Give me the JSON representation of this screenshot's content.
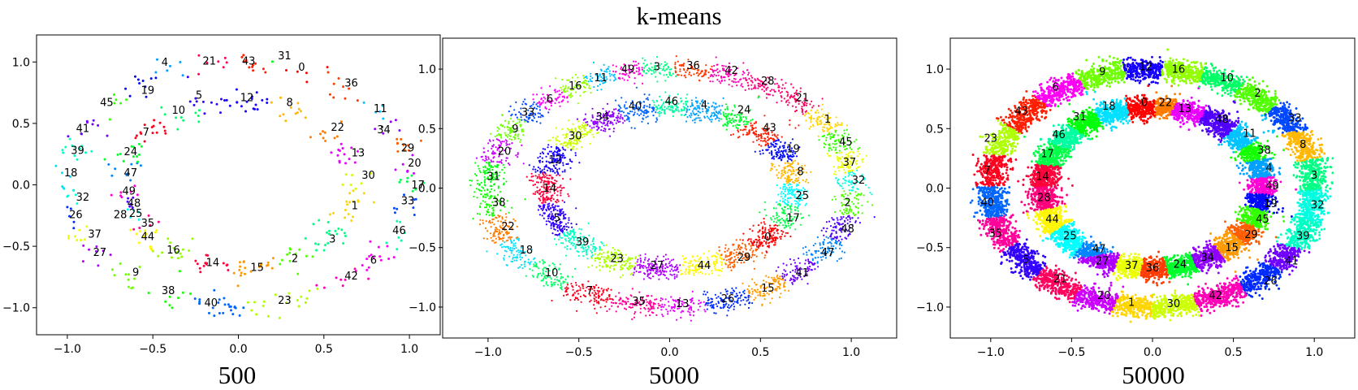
{
  "figure": {
    "title": "k-means"
  },
  "chart_data": [
    {
      "type": "scatter",
      "title": "",
      "xlabel": "500",
      "ylabel": "",
      "n_points": 500,
      "n_clusters": 50,
      "xlim": [
        -1.18,
        1.18
      ],
      "ylim": [
        -1.22,
        1.22
      ],
      "xticks": [
        -1.0,
        -0.5,
        0.0,
        0.5,
        1.0
      ],
      "yticks": [
        -1.0,
        -0.5,
        0.0,
        0.5,
        1.0
      ],
      "xtick_labels": [
        "−1.0",
        "−0.5",
        "0.0",
        "0.5",
        "1.0"
      ],
      "ytick_labels": [
        "−1.0",
        "−0.5",
        "0.0",
        "0.5",
        "1.0"
      ],
      "data": "two concentric noisy rings (outer radius ≈1.0, inner radius ≈0.68), 500 points coloured by k-means cluster",
      "cluster_centers": [
        {
          "label": "0",
          "x": 0.37,
          "y": 0.96
        },
        {
          "label": "1",
          "x": 0.68,
          "y": -0.17
        },
        {
          "label": "2",
          "x": 0.33,
          "y": -0.6
        },
        {
          "label": "3",
          "x": 0.55,
          "y": -0.44
        },
        {
          "label": "4",
          "x": -0.43,
          "y": 1.0
        },
        {
          "label": "5",
          "x": -0.23,
          "y": 0.73
        },
        {
          "label": "6",
          "x": 0.79,
          "y": -0.61
        },
        {
          "label": "7",
          "x": -0.54,
          "y": 0.43
        },
        {
          "label": "8",
          "x": 0.3,
          "y": 0.67
        },
        {
          "label": "9",
          "x": -0.6,
          "y": -0.71
        },
        {
          "label": "10",
          "x": -0.35,
          "y": 0.61
        },
        {
          "label": "11",
          "x": 0.83,
          "y": 0.62
        },
        {
          "label": "12",
          "x": 0.05,
          "y": 0.71
        },
        {
          "label": "13",
          "x": 0.7,
          "y": 0.26
        },
        {
          "label": "14",
          "x": -0.15,
          "y": -0.63
        },
        {
          "label": "15",
          "x": 0.11,
          "y": -0.67
        },
        {
          "label": "16",
          "x": -0.38,
          "y": -0.53
        },
        {
          "label": "17",
          "x": 1.05,
          "y": 0.0
        },
        {
          "label": "18",
          "x": -0.98,
          "y": 0.1
        },
        {
          "label": "19",
          "x": -0.53,
          "y": 0.77
        },
        {
          "label": "20",
          "x": 1.03,
          "y": 0.18
        },
        {
          "label": "21",
          "x": -0.17,
          "y": 1.01
        },
        {
          "label": "22",
          "x": 0.58,
          "y": 0.47
        },
        {
          "label": "23",
          "x": 0.27,
          "y": -0.94
        },
        {
          "label": "24",
          "x": -0.63,
          "y": 0.27
        },
        {
          "label": "25",
          "x": -0.6,
          "y": -0.23
        },
        {
          "label": "26",
          "x": -0.95,
          "y": -0.24
        },
        {
          "label": "27",
          "x": -0.81,
          "y": -0.55
        },
        {
          "label": "28",
          "x": -0.69,
          "y": -0.24
        },
        {
          "label": "29",
          "x": 0.99,
          "y": 0.3
        },
        {
          "label": "30",
          "x": 0.76,
          "y": 0.08
        },
        {
          "label": "31",
          "x": 0.27,
          "y": 1.05
        },
        {
          "label": "32",
          "x": -0.91,
          "y": -0.1
        },
        {
          "label": "33",
          "x": 0.99,
          "y": -0.13
        },
        {
          "label": "34",
          "x": 0.85,
          "y": 0.45
        },
        {
          "label": "35",
          "x": -0.53,
          "y": -0.31
        },
        {
          "label": "36",
          "x": 0.66,
          "y": 0.83
        },
        {
          "label": "37",
          "x": -0.84,
          "y": -0.4
        },
        {
          "label": "38",
          "x": -0.41,
          "y": -0.86
        },
        {
          "label": "39",
          "x": -0.94,
          "y": 0.28
        },
        {
          "label": "40",
          "x": -0.16,
          "y": -0.96
        },
        {
          "label": "41",
          "x": -0.91,
          "y": 0.46
        },
        {
          "label": "42",
          "x": 0.66,
          "y": -0.74
        },
        {
          "label": "43",
          "x": 0.06,
          "y": 1.01
        },
        {
          "label": "44",
          "x": -0.53,
          "y": -0.42
        },
        {
          "label": "45",
          "x": -0.77,
          "y": 0.67
        },
        {
          "label": "46",
          "x": 0.94,
          "y": -0.37
        },
        {
          "label": "47",
          "x": -0.63,
          "y": 0.1
        },
        {
          "label": "48",
          "x": -0.61,
          "y": -0.15
        },
        {
          "label": "49",
          "x": -0.64,
          "y": -0.05
        }
      ]
    },
    {
      "type": "scatter",
      "title": "",
      "xlabel": "5000",
      "ylabel": "",
      "n_points": 5000,
      "n_clusters": 50,
      "xlim": [
        -1.25,
        1.25
      ],
      "ylim": [
        -1.26,
        1.26
      ],
      "xticks": [
        -1.0,
        -0.5,
        0.0,
        0.5,
        1.0
      ],
      "yticks": [
        -1.0,
        -0.5,
        0.0,
        0.5,
        1.0
      ],
      "xtick_labels": [
        "−1.0",
        "−0.5",
        "0.0",
        "0.5",
        "1.0"
      ],
      "ytick_labels": [
        "−1.0",
        "−0.5",
        "0.0",
        "0.5",
        "1.0"
      ],
      "data": "two concentric noisy rings (outer radius ≈1.0, inner radius ≈0.68), 5000 points coloured by k-means cluster",
      "cluster_centers": [
        {
          "label": "0",
          "x": 0.54,
          "y": -0.41
        },
        {
          "label": "1",
          "x": 0.87,
          "y": 0.58
        },
        {
          "label": "2",
          "x": 0.98,
          "y": -0.12
        },
        {
          "label": "3",
          "x": -0.07,
          "y": 1.02
        },
        {
          "label": "4",
          "x": 0.19,
          "y": 0.7
        },
        {
          "label": "5",
          "x": -0.62,
          "y": -0.25
        },
        {
          "label": "6",
          "x": -0.66,
          "y": 0.75
        },
        {
          "label": "7",
          "x": -0.44,
          "y": -0.86
        },
        {
          "label": "8",
          "x": 0.72,
          "y": 0.14
        },
        {
          "label": "9",
          "x": -0.85,
          "y": 0.5
        },
        {
          "label": "10",
          "x": -0.65,
          "y": -0.71
        },
        {
          "label": "11",
          "x": -0.38,
          "y": 0.93
        },
        {
          "label": "12",
          "x": -0.63,
          "y": 0.24
        },
        {
          "label": "13",
          "x": 0.07,
          "y": -0.97
        },
        {
          "label": "14",
          "x": -0.66,
          "y": 0.0
        },
        {
          "label": "15",
          "x": 0.54,
          "y": -0.84
        },
        {
          "label": "16",
          "x": -0.52,
          "y": 0.86
        },
        {
          "label": "17",
          "x": 0.68,
          "y": -0.25
        },
        {
          "label": "18",
          "x": -0.79,
          "y": -0.52
        },
        {
          "label": "19",
          "x": 0.68,
          "y": 0.33
        },
        {
          "label": "20",
          "x": -0.91,
          "y": 0.31
        },
        {
          "label": "21",
          "x": 0.73,
          "y": 0.76
        },
        {
          "label": "22",
          "x": -0.89,
          "y": -0.32
        },
        {
          "label": "23",
          "x": -0.29,
          "y": -0.59
        },
        {
          "label": "24",
          "x": 0.41,
          "y": 0.66
        },
        {
          "label": "25",
          "x": 0.73,
          "y": -0.06
        },
        {
          "label": "26",
          "x": 0.32,
          "y": -0.93
        },
        {
          "label": "27",
          "x": -0.07,
          "y": -0.65
        },
        {
          "label": "28",
          "x": 0.54,
          "y": 0.9
        },
        {
          "label": "29",
          "x": 0.41,
          "y": -0.58
        },
        {
          "label": "30",
          "x": -0.52,
          "y": 0.44
        },
        {
          "label": "31",
          "x": -0.97,
          "y": 0.1
        },
        {
          "label": "32",
          "x": 1.04,
          "y": 0.07
        },
        {
          "label": "33",
          "x": -0.78,
          "y": 0.64
        },
        {
          "label": "34",
          "x": -0.37,
          "y": 0.6
        },
        {
          "label": "35",
          "x": -0.17,
          "y": -0.95
        },
        {
          "label": "36",
          "x": 0.13,
          "y": 1.03
        },
        {
          "label": "37",
          "x": 0.99,
          "y": 0.22
        },
        {
          "label": "38",
          "x": -0.94,
          "y": -0.12
        },
        {
          "label": "39",
          "x": -0.48,
          "y": -0.45
        },
        {
          "label": "40",
          "x": -0.19,
          "y": 0.69
        },
        {
          "label": "41",
          "x": 0.73,
          "y": -0.71
        },
        {
          "label": "42",
          "x": 0.34,
          "y": 0.99
        },
        {
          "label": "43",
          "x": 0.55,
          "y": 0.51
        },
        {
          "label": "44",
          "x": 0.19,
          "y": -0.65
        },
        {
          "label": "45",
          "x": 0.97,
          "y": 0.39
        },
        {
          "label": "46",
          "x": 0.01,
          "y": 0.73
        },
        {
          "label": "47",
          "x": 0.87,
          "y": -0.54
        },
        {
          "label": "48",
          "x": 0.98,
          "y": -0.34
        },
        {
          "label": "49",
          "x": -0.23,
          "y": 1.0
        }
      ]
    },
    {
      "type": "scatter",
      "title": "",
      "xlabel": "50000",
      "ylabel": "",
      "n_points": 50000,
      "n_clusters": 50,
      "xlim": [
        -1.25,
        1.25
      ],
      "ylim": [
        -1.26,
        1.26
      ],
      "xticks": [
        -1.0,
        -0.5,
        0.0,
        0.5,
        1.0
      ],
      "yticks": [
        -1.0,
        -0.5,
        0.0,
        0.5,
        1.0
      ],
      "xtick_labels": [
        "−1.0",
        "−0.5",
        "0.0",
        "0.5",
        "1.0"
      ],
      "ytick_labels": [
        "−1.0",
        "−0.5",
        "0.0",
        "0.5",
        "1.0"
      ],
      "data": "two concentric noisy rings (outer radius ≈1.0, inner radius ≈0.68), 50000 points coloured by k-means cluster",
      "cluster_centers": [
        {
          "label": "0",
          "x": -0.05,
          "y": 0.72
        },
        {
          "label": "1",
          "x": -0.13,
          "y": -0.96
        },
        {
          "label": "2",
          "x": 0.65,
          "y": 0.8
        },
        {
          "label": "3",
          "x": 1.0,
          "y": 0.11
        },
        {
          "label": "4",
          "x": 0.72,
          "y": 0.17
        },
        {
          "label": "5",
          "x": -0.78,
          "y": -0.6
        },
        {
          "label": "6",
          "x": -0.6,
          "y": 0.85
        },
        {
          "label": "7",
          "x": -1.02,
          "y": 0.15
        },
        {
          "label": "8",
          "x": 0.93,
          "y": 0.37
        },
        {
          "label": "9",
          "x": -0.31,
          "y": 0.98
        },
        {
          "label": "10",
          "x": 0.46,
          "y": 0.93
        },
        {
          "label": "11",
          "x": 0.6,
          "y": 0.46
        },
        {
          "label": "12",
          "x": -0.04,
          "y": 1.02
        },
        {
          "label": "13",
          "x": 0.2,
          "y": 0.67
        },
        {
          "label": "14",
          "x": -0.68,
          "y": 0.1
        },
        {
          "label": "15",
          "x": 0.49,
          "y": -0.5
        },
        {
          "label": "16",
          "x": 0.16,
          "y": 1.0
        },
        {
          "label": "17",
          "x": -0.65,
          "y": 0.29
        },
        {
          "label": "18",
          "x": -0.27,
          "y": 0.69
        },
        {
          "label": "19",
          "x": 0.73,
          "y": -0.13
        },
        {
          "label": "20",
          "x": -0.3,
          "y": -0.9
        },
        {
          "label": "21",
          "x": -0.57,
          "y": -0.76
        },
        {
          "label": "22",
          "x": 0.08,
          "y": 0.72
        },
        {
          "label": "23",
          "x": -1.0,
          "y": 0.42
        },
        {
          "label": "24",
          "x": 0.17,
          "y": -0.64
        },
        {
          "label": "25",
          "x": -0.51,
          "y": -0.4
        },
        {
          "label": "26",
          "x": 0.73,
          "y": -0.78
        },
        {
          "label": "27",
          "x": -0.31,
          "y": -0.61
        },
        {
          "label": "28",
          "x": -0.67,
          "y": -0.08
        },
        {
          "label": "29",
          "x": 0.61,
          "y": -0.39
        },
        {
          "label": "30",
          "x": 0.13,
          "y": -0.97
        },
        {
          "label": "31",
          "x": -0.45,
          "y": 0.6
        },
        {
          "label": "32",
          "x": 1.02,
          "y": -0.14
        },
        {
          "label": "33",
          "x": 0.88,
          "y": 0.59
        },
        {
          "label": "34",
          "x": 0.34,
          "y": -0.58
        },
        {
          "label": "35",
          "x": -0.97,
          "y": -0.38
        },
        {
          "label": "36",
          "x": 0.0,
          "y": -0.67
        },
        {
          "label": "37",
          "x": -0.13,
          "y": -0.65
        },
        {
          "label": "38",
          "x": 0.69,
          "y": 0.32
        },
        {
          "label": "39",
          "x": 0.93,
          "y": -0.4
        },
        {
          "label": "40",
          "x": -1.02,
          "y": -0.12
        },
        {
          "label": "41",
          "x": 0.86,
          "y": -0.61
        },
        {
          "label": "42",
          "x": 0.39,
          "y": -0.9
        },
        {
          "label": "43",
          "x": -0.81,
          "y": 0.65
        },
        {
          "label": "44",
          "x": -0.62,
          "y": -0.26
        },
        {
          "label": "45",
          "x": 0.68,
          "y": -0.26
        },
        {
          "label": "46",
          "x": -0.58,
          "y": 0.45
        },
        {
          "label": "47",
          "x": -0.33,
          "y": -0.51
        },
        {
          "label": "48",
          "x": 0.43,
          "y": 0.58
        },
        {
          "label": "49",
          "x": 0.74,
          "y": 0.02
        }
      ]
    }
  ]
}
